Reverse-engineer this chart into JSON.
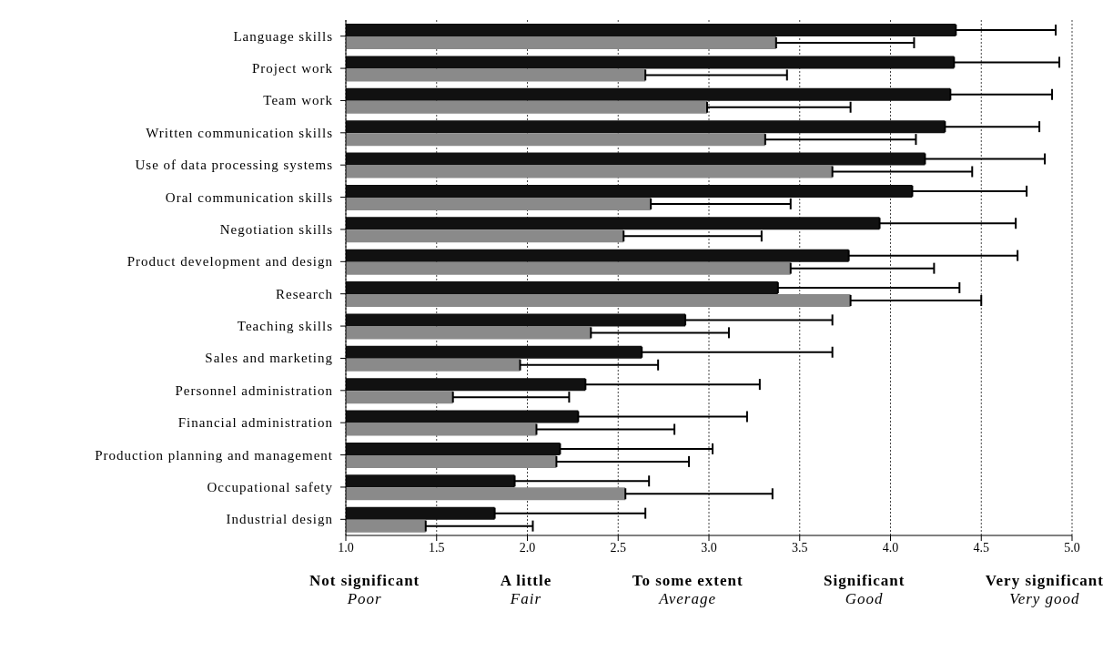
{
  "chart_data": {
    "type": "bar",
    "orientation": "horizontal",
    "categories": [
      "Language skills",
      "Project work",
      "Team work",
      "Written communication skills",
      "Use of data processing systems",
      "Oral communication skills",
      "Negotiation skills",
      "Product development and design",
      "Research",
      "Teaching skills",
      "Sales and marketing",
      "Personnel administration",
      "Financial administration",
      "Production planning and management",
      "Occupational safety",
      "Industrial design"
    ],
    "series": [
      {
        "color": "#111111",
        "values": [
          4.36,
          4.35,
          4.33,
          4.3,
          4.19,
          4.12,
          3.94,
          3.77,
          3.38,
          2.87,
          2.63,
          2.32,
          2.28,
          2.18,
          1.93,
          1.82
        ],
        "errors": [
          [
            4.36,
            4.91
          ],
          [
            4.35,
            4.93
          ],
          [
            4.33,
            4.89
          ],
          [
            4.3,
            4.82
          ],
          [
            4.19,
            4.85
          ],
          [
            4.12,
            4.75
          ],
          [
            3.94,
            4.69
          ],
          [
            3.77,
            4.7
          ],
          [
            3.38,
            4.38
          ],
          [
            2.87,
            3.68
          ],
          [
            2.63,
            3.68
          ],
          [
            2.32,
            3.28
          ],
          [
            2.28,
            3.21
          ],
          [
            2.18,
            3.02
          ],
          [
            1.93,
            2.67
          ],
          [
            1.82,
            2.65
          ]
        ]
      },
      {
        "color": "#8a8a8a",
        "values": [
          3.37,
          2.65,
          2.99,
          3.31,
          3.68,
          2.68,
          2.53,
          3.45,
          3.78,
          2.35,
          1.96,
          1.59,
          2.05,
          2.16,
          2.54,
          1.44
        ],
        "errors": [
          [
            3.37,
            4.13
          ],
          [
            2.65,
            3.43
          ],
          [
            2.99,
            3.78
          ],
          [
            3.31,
            4.14
          ],
          [
            3.68,
            4.45
          ],
          [
            2.68,
            3.45
          ],
          [
            2.53,
            3.29
          ],
          [
            3.45,
            4.24
          ],
          [
            3.78,
            4.5
          ],
          [
            2.35,
            3.11
          ],
          [
            1.96,
            2.72
          ],
          [
            1.59,
            2.23
          ],
          [
            2.05,
            2.81
          ],
          [
            2.16,
            2.89
          ],
          [
            2.54,
            3.35
          ],
          [
            1.44,
            2.03
          ]
        ]
      }
    ],
    "xlim": [
      1,
      5
    ],
    "xticks": [
      {
        "value": 1,
        "label": "1.0"
      },
      {
        "value": 1.5,
        "label": "1.5"
      },
      {
        "value": 2,
        "label": "2.0"
      },
      {
        "value": 2.5,
        "label": "2.5"
      },
      {
        "value": 3,
        "label": "3.0"
      },
      {
        "value": 3.5,
        "label": "3.5"
      },
      {
        "value": 4,
        "label": "4.0"
      },
      {
        "value": 4.5,
        "label": "4.5"
      },
      {
        "value": 5,
        "label": "5.0"
      }
    ],
    "grid": "x",
    "legend": false,
    "annotations": [
      "Not significant",
      "Poor",
      "A little",
      "Fair",
      "To some extent",
      "Average",
      "Significant",
      "Good",
      "Very significant",
      "Very good"
    ]
  }
}
